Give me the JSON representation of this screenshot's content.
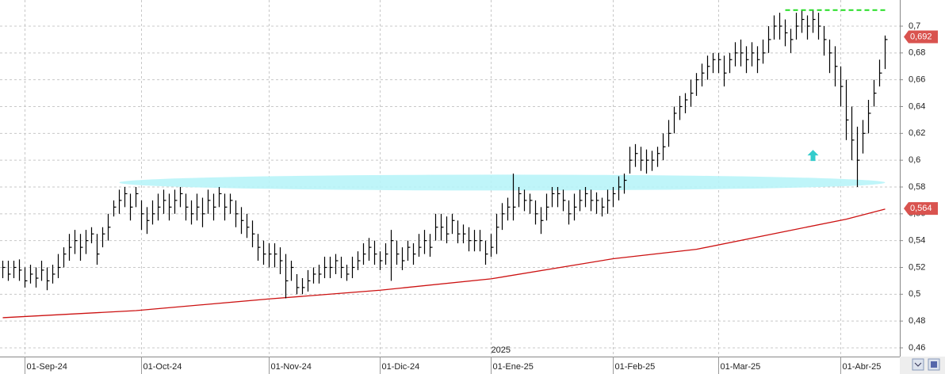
{
  "chart_data": {
    "type": "ohlc",
    "ylim": [
      0.4535,
      0.7195
    ],
    "yticks": [
      {
        "value": 0.46,
        "label": "0,46"
      },
      {
        "value": 0.48,
        "label": "0,48"
      },
      {
        "value": 0.5,
        "label": "0,5"
      },
      {
        "value": 0.52,
        "label": "0,52"
      },
      {
        "value": 0.54,
        "label": "0,54"
      },
      {
        "value": 0.56,
        "label": "0,56"
      },
      {
        "value": 0.58,
        "label": "0,58"
      },
      {
        "value": 0.6,
        "label": "0,6"
      },
      {
        "value": 0.62,
        "label": "0,62"
      },
      {
        "value": 0.64,
        "label": "0,64"
      },
      {
        "value": 0.66,
        "label": "0,66"
      },
      {
        "value": 0.68,
        "label": "0,68"
      },
      {
        "value": 0.7,
        "label": "0,7"
      }
    ],
    "xticks": [
      {
        "value": 4,
        "label": "01-Sep-24"
      },
      {
        "value": 25,
        "label": "01-Oct-24"
      },
      {
        "value": 48,
        "label": "01-Nov-24"
      },
      {
        "value": 68,
        "label": "01-Dic-24"
      },
      {
        "value": 88,
        "label": "01-Ene-25"
      },
      {
        "value": 110,
        "label": "01-Feb-25"
      },
      {
        "value": 129,
        "label": "01-Mar-25"
      },
      {
        "value": 151,
        "label": "01-Abr-25"
      }
    ],
    "year_label": {
      "value": 88,
      "label": "2025"
    },
    "grid": true,
    "bar_color": "#000000",
    "high": [
      0.525,
      0.525,
      0.525,
      0.526,
      0.52,
      0.522,
      0.52,
      0.525,
      0.52,
      0.522,
      0.53,
      0.535,
      0.545,
      0.548,
      0.545,
      0.548,
      0.55,
      0.545,
      0.55,
      0.56,
      0.57,
      0.578,
      0.58,
      0.575,
      0.58,
      0.57,
      0.565,
      0.57,
      0.575,
      0.578,
      0.575,
      0.578,
      0.58,
      0.575,
      0.57,
      0.575,
      0.572,
      0.578,
      0.575,
      0.58,
      0.575,
      0.575,
      0.57,
      0.565,
      0.56,
      0.555,
      0.545,
      0.54,
      0.538,
      0.538,
      0.535,
      0.53,
      0.525,
      0.515,
      0.512,
      0.518,
      0.52,
      0.522,
      0.528,
      0.528,
      0.53,
      0.528,
      0.522,
      0.528,
      0.532,
      0.538,
      0.542,
      0.54,
      0.532,
      0.538,
      0.548,
      0.54,
      0.535,
      0.54,
      0.538,
      0.545,
      0.548,
      0.545,
      0.56,
      0.56,
      0.558,
      0.56,
      0.555,
      0.552,
      0.55,
      0.548,
      0.548,
      0.54,
      0.545,
      0.56,
      0.568,
      0.572,
      0.59,
      0.58,
      0.578,
      0.575,
      0.57,
      0.565,
      0.575,
      0.58,
      0.58,
      0.578,
      0.57,
      0.575,
      0.578,
      0.58,
      0.578,
      0.576,
      0.572,
      0.578,
      0.58,
      0.588,
      0.59,
      0.61,
      0.612,
      0.61,
      0.608,
      0.607,
      0.61,
      0.62,
      0.63,
      0.64,
      0.648,
      0.65,
      0.66,
      0.665,
      0.672,
      0.678,
      0.68,
      0.68,
      0.678,
      0.68,
      0.688,
      0.69,
      0.685,
      0.688,
      0.685,
      0.69,
      0.7,
      0.708,
      0.71,
      0.705,
      0.698,
      0.71,
      0.712,
      0.708,
      0.712,
      0.71,
      0.7,
      0.69,
      0.685,
      0.67,
      0.66,
      0.64,
      0.625,
      0.63,
      0.645,
      0.66,
      0.675,
      0.693
    ],
    "low": [
      0.512,
      0.51,
      0.512,
      0.51,
      0.505,
      0.508,
      0.505,
      0.51,
      0.503,
      0.508,
      0.512,
      0.52,
      0.525,
      0.53,
      0.525,
      0.53,
      0.538,
      0.522,
      0.535,
      0.54,
      0.558,
      0.56,
      0.565,
      0.555,
      0.565,
      0.548,
      0.545,
      0.552,
      0.555,
      0.56,
      0.555,
      0.56,
      0.565,
      0.555,
      0.552,
      0.555,
      0.55,
      0.56,
      0.555,
      0.565,
      0.555,
      0.56,
      0.55,
      0.545,
      0.542,
      0.535,
      0.525,
      0.522,
      0.52,
      0.52,
      0.515,
      0.497,
      0.51,
      0.5,
      0.5,
      0.502,
      0.508,
      0.508,
      0.512,
      0.512,
      0.515,
      0.512,
      0.51,
      0.512,
      0.518,
      0.522,
      0.525,
      0.522,
      0.518,
      0.522,
      0.51,
      0.522,
      0.518,
      0.525,
      0.522,
      0.528,
      0.53,
      0.528,
      0.54,
      0.54,
      0.538,
      0.545,
      0.538,
      0.538,
      0.532,
      0.532,
      0.532,
      0.522,
      0.528,
      0.53,
      0.548,
      0.555,
      0.555,
      0.565,
      0.562,
      0.56,
      0.552,
      0.545,
      0.555,
      0.565,
      0.565,
      0.562,
      0.552,
      0.555,
      0.562,
      0.565,
      0.562,
      0.56,
      0.558,
      0.56,
      0.565,
      0.57,
      0.575,
      0.59,
      0.595,
      0.592,
      0.59,
      0.592,
      0.595,
      0.6,
      0.61,
      0.62,
      0.63,
      0.635,
      0.64,
      0.648,
      0.655,
      0.66,
      0.665,
      0.665,
      0.655,
      0.665,
      0.67,
      0.67,
      0.665,
      0.67,
      0.665,
      0.672,
      0.68,
      0.69,
      0.69,
      0.685,
      0.68,
      0.69,
      0.695,
      0.69,
      0.695,
      0.69,
      0.678,
      0.665,
      0.655,
      0.64,
      0.615,
      0.6,
      0.58,
      0.605,
      0.62,
      0.64,
      0.655,
      0.668
    ],
    "close": [
      0.52,
      0.515,
      0.52,
      0.518,
      0.51,
      0.515,
      0.512,
      0.518,
      0.51,
      0.515,
      0.52,
      0.53,
      0.535,
      0.54,
      0.535,
      0.54,
      0.545,
      0.53,
      0.545,
      0.55,
      0.565,
      0.57,
      0.575,
      0.565,
      0.575,
      0.56,
      0.555,
      0.56,
      0.565,
      0.57,
      0.565,
      0.57,
      0.575,
      0.565,
      0.56,
      0.565,
      0.56,
      0.57,
      0.565,
      0.575,
      0.565,
      0.57,
      0.56,
      0.555,
      0.55,
      0.545,
      0.535,
      0.53,
      0.53,
      0.53,
      0.525,
      0.51,
      0.52,
      0.505,
      0.505,
      0.51,
      0.515,
      0.515,
      0.52,
      0.52,
      0.525,
      0.52,
      0.515,
      0.52,
      0.525,
      0.53,
      0.535,
      0.53,
      0.525,
      0.53,
      0.54,
      0.53,
      0.525,
      0.535,
      0.53,
      0.535,
      0.54,
      0.535,
      0.55,
      0.55,
      0.545,
      0.555,
      0.545,
      0.545,
      0.54,
      0.54,
      0.54,
      0.53,
      0.535,
      0.55,
      0.56,
      0.565,
      0.565,
      0.575,
      0.57,
      0.57,
      0.56,
      0.555,
      0.565,
      0.575,
      0.575,
      0.57,
      0.56,
      0.565,
      0.57,
      0.575,
      0.57,
      0.57,
      0.565,
      0.57,
      0.575,
      0.58,
      0.585,
      0.6,
      0.605,
      0.6,
      0.6,
      0.6,
      0.605,
      0.61,
      0.62,
      0.635,
      0.64,
      0.645,
      0.65,
      0.66,
      0.665,
      0.67,
      0.675,
      0.675,
      0.665,
      0.675,
      0.68,
      0.68,
      0.675,
      0.68,
      0.675,
      0.68,
      0.69,
      0.7,
      0.7,
      0.695,
      0.69,
      0.7,
      0.705,
      0.7,
      0.705,
      0.7,
      0.69,
      0.68,
      0.67,
      0.655,
      0.63,
      0.615,
      0.6,
      0.62,
      0.635,
      0.65,
      0.665,
      0.69
    ],
    "moving_average": {
      "color": "#cc1111",
      "x": [
        0,
        24,
        48,
        68,
        88,
        110,
        125,
        140,
        152,
        159
      ],
      "values": [
        0.4825,
        0.4878,
        0.4965,
        0.503,
        0.5115,
        0.5265,
        0.5335,
        0.546,
        0.556,
        0.5635
      ]
    },
    "resistance": {
      "color": "#22dd22",
      "value": 0.712,
      "x": [
        141,
        159
      ]
    },
    "support_band": {
      "color": "#b8f4f8",
      "value": 0.5833,
      "x": [
        21,
        159
      ]
    },
    "arrow": {
      "color": "#33cccc",
      "x": 146,
      "value": 0.603
    },
    "price_labels": [
      {
        "value": 0.692,
        "label": "0,692"
      },
      {
        "value": 0.564,
        "label": "0,564"
      }
    ]
  }
}
